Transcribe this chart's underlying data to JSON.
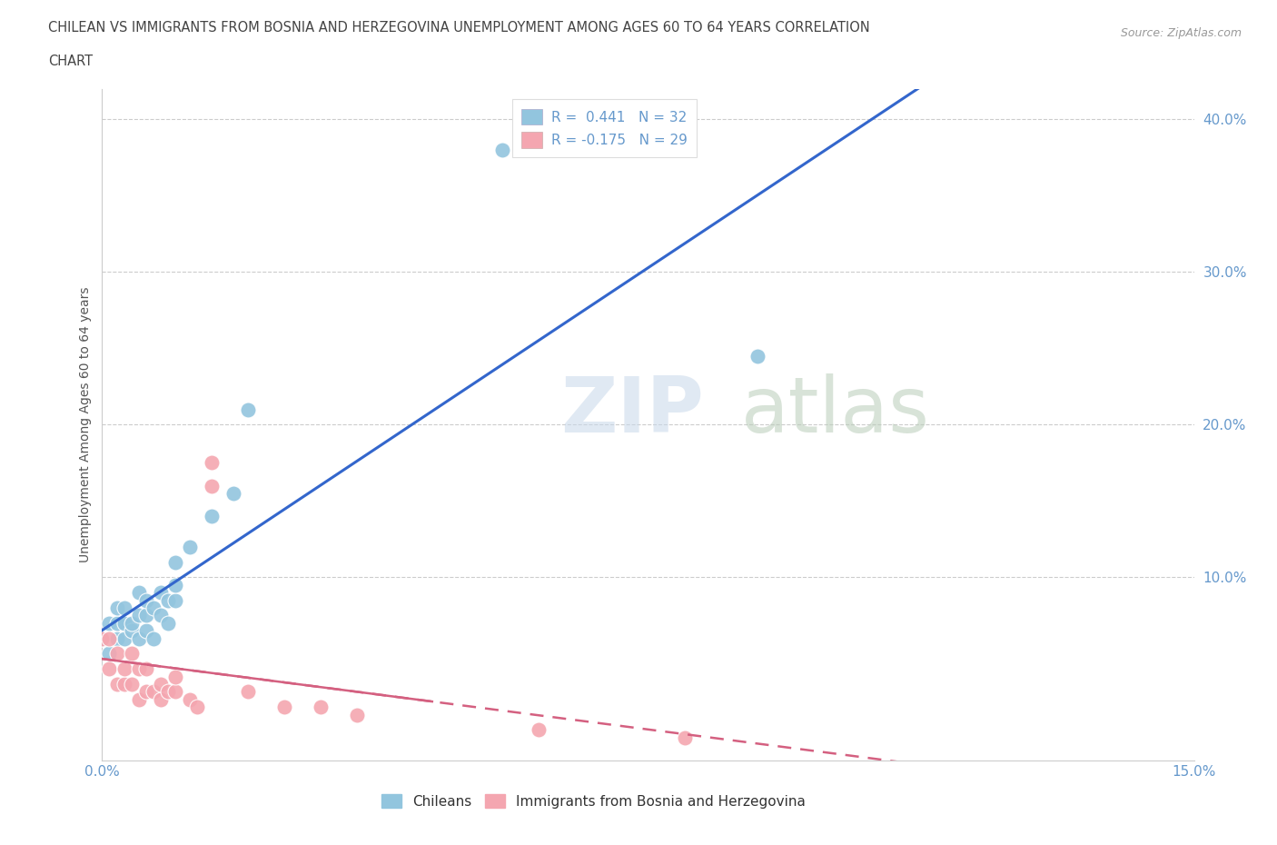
{
  "title_line1": "CHILEAN VS IMMIGRANTS FROM BOSNIA AND HERZEGOVINA UNEMPLOYMENT AMONG AGES 60 TO 64 YEARS CORRELATION",
  "title_line2": "CHART",
  "source": "Source: ZipAtlas.com",
  "ylabel_label": "Unemployment Among Ages 60 to 64 years",
  "legend_chilean": "Chileans",
  "legend_immigrant": "Immigrants from Bosnia and Herzegovina",
  "R_chilean": 0.441,
  "N_chilean": 32,
  "R_immigrant": -0.175,
  "N_immigrant": 29,
  "chilean_color": "#92c5de",
  "immigrant_color": "#f4a6b0",
  "chilean_line_color": "#3366cc",
  "immigrant_line_color": "#d46080",
  "xlim": [
    0.0,
    0.15
  ],
  "ylim": [
    -0.02,
    0.42
  ],
  "chilean_x": [
    0.0,
    0.001,
    0.001,
    0.002,
    0.002,
    0.002,
    0.003,
    0.003,
    0.003,
    0.004,
    0.004,
    0.005,
    0.005,
    0.005,
    0.006,
    0.006,
    0.006,
    0.007,
    0.007,
    0.008,
    0.008,
    0.009,
    0.009,
    0.01,
    0.01,
    0.01,
    0.012,
    0.015,
    0.018,
    0.02,
    0.055,
    0.09
  ],
  "chilean_y": [
    0.06,
    0.05,
    0.07,
    0.06,
    0.07,
    0.08,
    0.06,
    0.07,
    0.08,
    0.065,
    0.07,
    0.06,
    0.075,
    0.09,
    0.065,
    0.075,
    0.085,
    0.06,
    0.08,
    0.075,
    0.09,
    0.07,
    0.085,
    0.085,
    0.095,
    0.11,
    0.12,
    0.14,
    0.155,
    0.21,
    0.38,
    0.245
  ],
  "immigrant_x": [
    0.0,
    0.001,
    0.001,
    0.002,
    0.002,
    0.003,
    0.003,
    0.004,
    0.004,
    0.005,
    0.005,
    0.006,
    0.006,
    0.007,
    0.008,
    0.008,
    0.009,
    0.01,
    0.01,
    0.012,
    0.013,
    0.015,
    0.015,
    0.02,
    0.025,
    0.03,
    0.035,
    0.06,
    0.08
  ],
  "immigrant_y": [
    0.06,
    0.04,
    0.06,
    0.03,
    0.05,
    0.03,
    0.04,
    0.03,
    0.05,
    0.02,
    0.04,
    0.025,
    0.04,
    0.025,
    0.02,
    0.03,
    0.025,
    0.025,
    0.035,
    0.02,
    0.015,
    0.175,
    0.16,
    0.025,
    0.015,
    0.015,
    0.01,
    0.0,
    -0.005
  ]
}
